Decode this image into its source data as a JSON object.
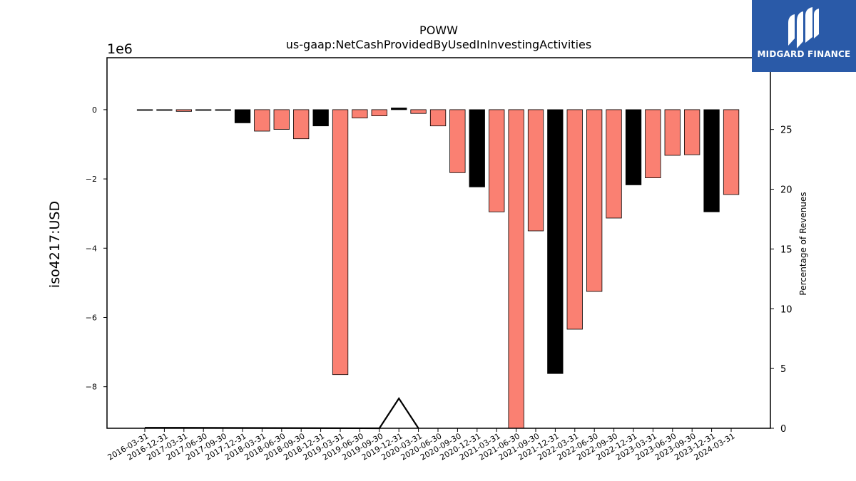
{
  "chart_data": {
    "type": "bar",
    "title": "POWW",
    "subtitle": "us-gaap:NetCashProvidedByUsedInInvestingActivities",
    "ylabel": "iso4217:USD",
    "y_offset_label": "1e6",
    "y2label": "Percentage of Revenues",
    "ylim": [
      -9.2,
      1.5
    ],
    "y_ticks": [
      0,
      -2,
      -4,
      -6,
      -8
    ],
    "y_tick_labels": [
      "0",
      "−2",
      "−4",
      "−6",
      "−8"
    ],
    "y2lim": [
      0,
      31
    ],
    "y2_ticks": [
      0,
      5,
      10,
      15,
      20,
      25
    ],
    "y2_tick_labels": [
      "0",
      "5",
      "10",
      "15",
      "20",
      "25"
    ],
    "colors": {
      "annual": "#000000",
      "quarter": "#fa8072",
      "line": "#000000"
    },
    "categories": [
      "2016-03-31",
      "2016-12-31",
      "2017-03-31",
      "2017-06-30",
      "2017-09-30",
      "2017-12-31",
      "2018-03-31",
      "2018-06-30",
      "2018-09-30",
      "2018-12-31",
      "2019-03-31",
      "2019-06-30",
      "2019-09-30",
      "2019-12-31",
      "2020-03-31",
      "2020-06-30",
      "2020-09-30",
      "2020-12-31",
      "2021-03-31",
      "2021-06-30",
      "2021-09-30",
      "2021-12-31",
      "2022-03-31",
      "2022-06-30",
      "2022-09-30",
      "2022-12-31",
      "2023-03-31",
      "2023-06-30",
      "2023-09-30",
      "2023-12-31",
      "2024-03-31"
    ],
    "bars": [
      {
        "x": "2016-03-31",
        "value": -0.01,
        "color": "#000000"
      },
      {
        "x": "2016-12-31",
        "value": -0.01,
        "color": "#000000"
      },
      {
        "x": "2017-03-31",
        "value": -0.05,
        "color": "#fa8072"
      },
      {
        "x": "2017-06-30",
        "value": -0.01,
        "color": "#000000"
      },
      {
        "x": "2017-09-30",
        "value": -0.01,
        "color": "#000000"
      },
      {
        "x": "2017-12-31",
        "value": -0.38,
        "color": "#000000"
      },
      {
        "x": "2018-03-31",
        "value": -0.62,
        "color": "#fa8072"
      },
      {
        "x": "2018-06-30",
        "value": -0.57,
        "color": "#fa8072"
      },
      {
        "x": "2018-09-30",
        "value": -0.84,
        "color": "#fa8072"
      },
      {
        "x": "2018-12-31",
        "value": -0.47,
        "color": "#000000"
      },
      {
        "x": "2019-03-31",
        "value": -7.65,
        "color": "#fa8072"
      },
      {
        "x": "2019-06-30",
        "value": -0.24,
        "color": "#fa8072"
      },
      {
        "x": "2019-09-30",
        "value": -0.18,
        "color": "#fa8072"
      },
      {
        "x": "2019-12-31",
        "value": 0.05,
        "color": "#000000"
      },
      {
        "x": "2020-03-31",
        "value": -0.11,
        "color": "#fa8072"
      },
      {
        "x": "2020-06-30",
        "value": -0.47,
        "color": "#fa8072"
      },
      {
        "x": "2020-09-30",
        "value": -1.82,
        "color": "#fa8072"
      },
      {
        "x": "2020-12-31",
        "value": -2.23,
        "color": "#000000"
      },
      {
        "x": "2021-03-31",
        "value": -2.95,
        "color": "#fa8072"
      },
      {
        "x": "2021-06-30",
        "value": -9.3,
        "color": "#fa8072"
      },
      {
        "x": "2021-09-30",
        "value": -3.5,
        "color": "#fa8072"
      },
      {
        "x": "2021-12-31",
        "value": -7.62,
        "color": "#000000"
      },
      {
        "x": "2022-03-31",
        "value": -6.34,
        "color": "#fa8072"
      },
      {
        "x": "2022-06-30",
        "value": -5.25,
        "color": "#fa8072"
      },
      {
        "x": "2022-09-30",
        "value": -3.13,
        "color": "#fa8072"
      },
      {
        "x": "2022-12-31",
        "value": -2.17,
        "color": "#000000"
      },
      {
        "x": "2023-03-31",
        "value": -1.97,
        "color": "#fa8072"
      },
      {
        "x": "2023-06-30",
        "value": -1.32,
        "color": "#fa8072"
      },
      {
        "x": "2023-09-30",
        "value": -1.3,
        "color": "#fa8072"
      },
      {
        "x": "2023-12-31",
        "value": -2.95,
        "color": "#000000"
      },
      {
        "x": "2024-03-31",
        "value": -2.45,
        "color": "#fa8072"
      }
    ],
    "line_series": {
      "axis": "right",
      "points": [
        {
          "x": "2016-03-31",
          "y": 0.05
        },
        {
          "x": "2016-12-31",
          "y": 0.05
        },
        {
          "x": "2019-09-30",
          "y": 0
        },
        {
          "x": "2019-12-31",
          "y": 2.5
        },
        {
          "x": "2020-03-31",
          "y": 0
        }
      ]
    },
    "grid": false,
    "legend": "none"
  },
  "logo": {
    "text": "MIDGARD FINANCE"
  }
}
